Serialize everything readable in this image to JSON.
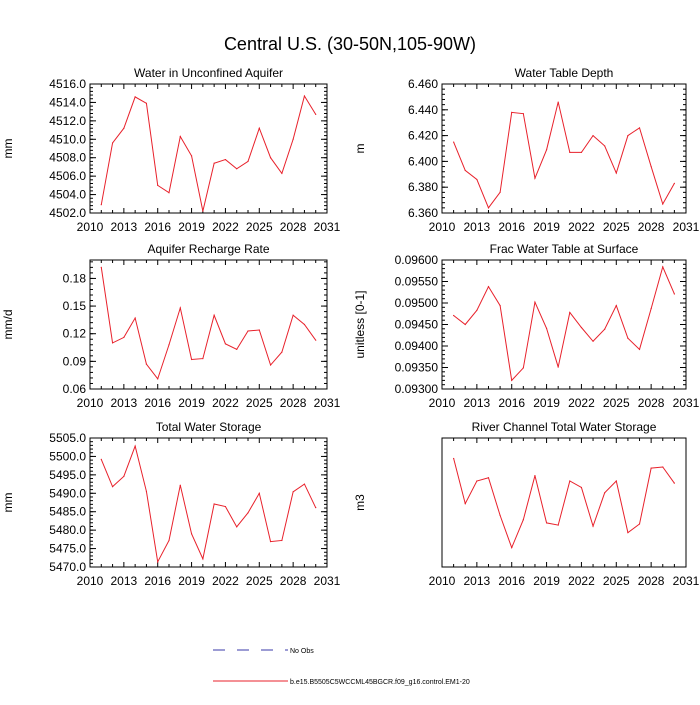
{
  "page": {
    "title": "Central U.S. (30-50N,105-90W)",
    "legend": [
      {
        "label": "No Obs",
        "style": "dashed",
        "color": "#3a3aa8"
      },
      {
        "label": "b.e15.B5505C5WCCML45BGCR.f09_g16.control.EM1-20",
        "style": "solid",
        "color": "#e8212b"
      }
    ]
  },
  "chart_data": [
    {
      "type": "line",
      "title": "Water in Unconfined Aquifer",
      "ylabel": "mm",
      "x": [
        2011,
        2012,
        2013,
        2014,
        2015,
        2016,
        2017,
        2018,
        2019,
        2020,
        2021,
        2022,
        2023,
        2024,
        2025,
        2026,
        2027,
        2028,
        2029,
        2030
      ],
      "values": [
        4502.9,
        4509.6,
        4511.2,
        4514.6,
        4513.9,
        4505.0,
        4504.2,
        4510.3,
        4508.2,
        4502.2,
        4507.4,
        4507.8,
        4506.8,
        4507.6,
        4511.2,
        4508.0,
        4506.3,
        4510.0,
        4514.7,
        4512.7
      ],
      "xlim": [
        2010,
        2031
      ],
      "ylim": [
        4502.0,
        4516.0
      ],
      "xticks": [
        "2010",
        "2013",
        "2016",
        "2019",
        "2022",
        "2025",
        "2028",
        "2031"
      ],
      "yticks": [
        "4502.0",
        "4504.0",
        "4506.0",
        "4508.0",
        "4510.0",
        "4512.0",
        "4514.0",
        "4516.0"
      ],
      "color": "#e8212b"
    },
    {
      "type": "line",
      "title": "Water Table Depth",
      "ylabel": "m",
      "x": [
        2011,
        2012,
        2013,
        2014,
        2015,
        2016,
        2017,
        2018,
        2019,
        2020,
        2021,
        2022,
        2023,
        2024,
        2025,
        2026,
        2027,
        2028,
        2029,
        2030
      ],
      "values": [
        6.415,
        6.393,
        6.386,
        6.364,
        6.376,
        6.438,
        6.437,
        6.387,
        6.409,
        6.446,
        6.407,
        6.407,
        6.42,
        6.412,
        6.391,
        6.42,
        6.426,
        6.396,
        6.367,
        6.383
      ],
      "xlim": [
        2010,
        2031
      ],
      "ylim": [
        6.36,
        6.46
      ],
      "xticks": [
        "2010",
        "2013",
        "2016",
        "2019",
        "2022",
        "2025",
        "2028",
        "2031"
      ],
      "yticks": [
        "6.360",
        "6.380",
        "6.400",
        "6.420",
        "6.440",
        "6.460"
      ],
      "color": "#e8212b"
    },
    {
      "type": "line",
      "title": "Aquifer Recharge Rate",
      "ylabel": "mm/d",
      "x": [
        2011,
        2012,
        2013,
        2014,
        2015,
        2016,
        2017,
        2018,
        2019,
        2020,
        2021,
        2022,
        2023,
        2024,
        2025,
        2026,
        2027,
        2028,
        2029,
        2030
      ],
      "values": [
        0.192,
        0.11,
        0.116,
        0.137,
        0.087,
        0.071,
        0.108,
        0.148,
        0.092,
        0.093,
        0.14,
        0.109,
        0.103,
        0.123,
        0.124,
        0.086,
        0.1,
        0.14,
        0.13,
        0.113
      ],
      "xlim": [
        2010,
        2031
      ],
      "ylim": [
        0.06,
        0.2
      ],
      "xticks": [
        "2010",
        "2013",
        "2016",
        "2019",
        "2022",
        "2025",
        "2028",
        "2031"
      ],
      "yticks": [
        "0.06",
        "0.09",
        "0.12",
        "0.15",
        "0.18"
      ],
      "color": "#e8212b"
    },
    {
      "type": "line",
      "title": "Frac Water Table at Surface",
      "ylabel": "unitless [0-1]",
      "x": [
        2011,
        2012,
        2013,
        2014,
        2015,
        2016,
        2017,
        2018,
        2019,
        2020,
        2021,
        2022,
        2023,
        2024,
        2025,
        2026,
        2027,
        2028,
        2029,
        2030
      ],
      "values": [
        0.09471,
        0.0945,
        0.09483,
        0.09538,
        0.09494,
        0.0932,
        0.09349,
        0.09502,
        0.09441,
        0.09351,
        0.09478,
        0.09443,
        0.09411,
        0.09439,
        0.09494,
        0.09418,
        0.09392,
        0.09487,
        0.09584,
        0.09521
      ],
      "xlim": [
        2010,
        2031
      ],
      "ylim": [
        0.093,
        0.096
      ],
      "xticks": [
        "2010",
        "2013",
        "2016",
        "2019",
        "2022",
        "2025",
        "2028",
        "2031"
      ],
      "yticks": [
        "0.09300",
        "0.09350",
        "0.09400",
        "0.09450",
        "0.09500",
        "0.09550",
        "0.09600"
      ],
      "color": "#e8212b"
    },
    {
      "type": "line",
      "title": "Total Water Storage",
      "ylabel": "mm",
      "x": [
        2011,
        2012,
        2013,
        2014,
        2015,
        2016,
        2017,
        2018,
        2019,
        2020,
        2021,
        2022,
        2023,
        2024,
        2025,
        2026,
        2027,
        2028,
        2029,
        2030
      ],
      "values": [
        5499.2,
        5491.8,
        5494.6,
        5502.8,
        5490.5,
        5471.4,
        5477.2,
        5492.2,
        5479.0,
        5472.2,
        5487.1,
        5486.4,
        5480.9,
        5484.7,
        5490.0,
        5476.9,
        5477.2,
        5490.4,
        5492.5,
        5486.1
      ],
      "xlim": [
        2010,
        2031
      ],
      "ylim": [
        5470.0,
        5505.0
      ],
      "xticks": [
        "2010",
        "2013",
        "2016",
        "2019",
        "2022",
        "2025",
        "2028",
        "2031"
      ],
      "yticks": [
        "5470.0",
        "5475.0",
        "5480.0",
        "5485.0",
        "5490.0",
        "5495.0",
        "5500.0",
        "5505.0"
      ],
      "color": "#e8212b"
    },
    {
      "type": "line",
      "title": "River Channel Total Water Storage",
      "ylabel": "m3",
      "x": [
        2011,
        2012,
        2013,
        2014,
        2015,
        2016,
        2017,
        2018,
        2019,
        2020,
        2021,
        2022,
        2023,
        2024,
        2025,
        2026,
        2027,
        2028,
        2029,
        2030
      ],
      "values": [
        250500000,
        229500000,
        240000000,
        241500000,
        224000000,
        209000000,
        222000000,
        242500000,
        220500000,
        219500000,
        240000000,
        237000000,
        219000000,
        234500000,
        240000000,
        216000000,
        220000000,
        246000000,
        246500000,
        239000000
      ],
      "xlim": [
        2010,
        2031
      ],
      "ylim": [
        200000000,
        260000000
      ],
      "xticks": [
        "2010",
        "2013",
        "2016",
        "2019",
        "2022",
        "2025",
        "2028",
        "2031"
      ],
      "yticks": [
        "2.00e8",
        "2.10e8",
        "2.20e8",
        "2.30e8",
        "2.40e8",
        "2.50e8",
        "2.60e8"
      ],
      "color": "#e8212b"
    }
  ]
}
